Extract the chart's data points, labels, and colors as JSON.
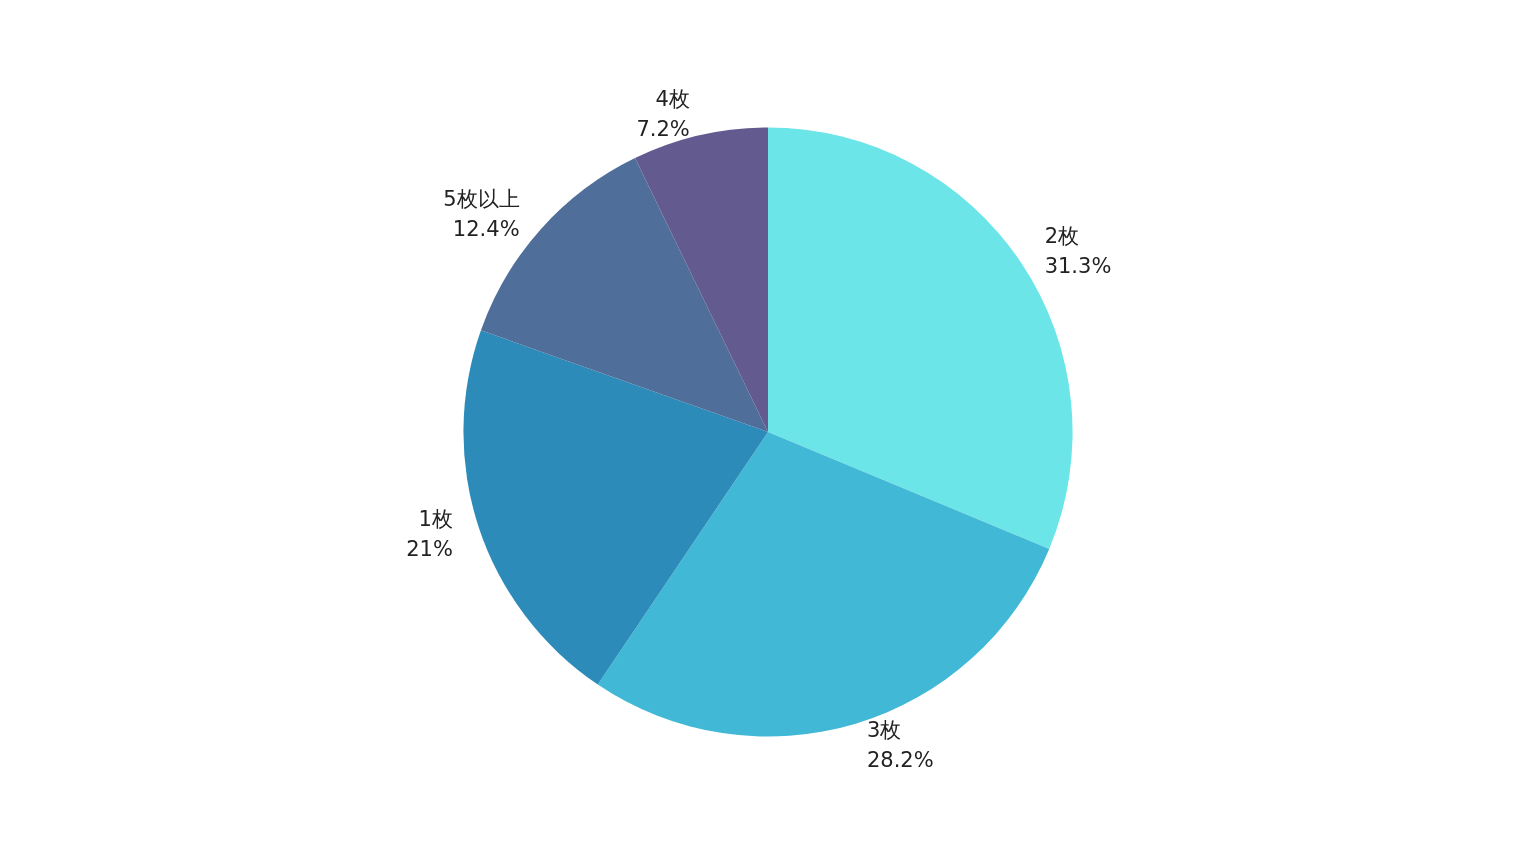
{
  "chart_data": {
    "type": "pie",
    "categories": [
      "2枚",
      "3枚",
      "1枚",
      "5枚以上",
      "4枚"
    ],
    "values": [
      31.3,
      28.2,
      21,
      12.4,
      7.2
    ],
    "value_labels": [
      "31.3%",
      "28.2%",
      "21%",
      "12.4%",
      "7.2%"
    ],
    "colors": [
      "#6ce5e8",
      "#41b8d5",
      "#2d8bba",
      "#506e9a",
      "#635a8f"
    ],
    "legend": false
  }
}
